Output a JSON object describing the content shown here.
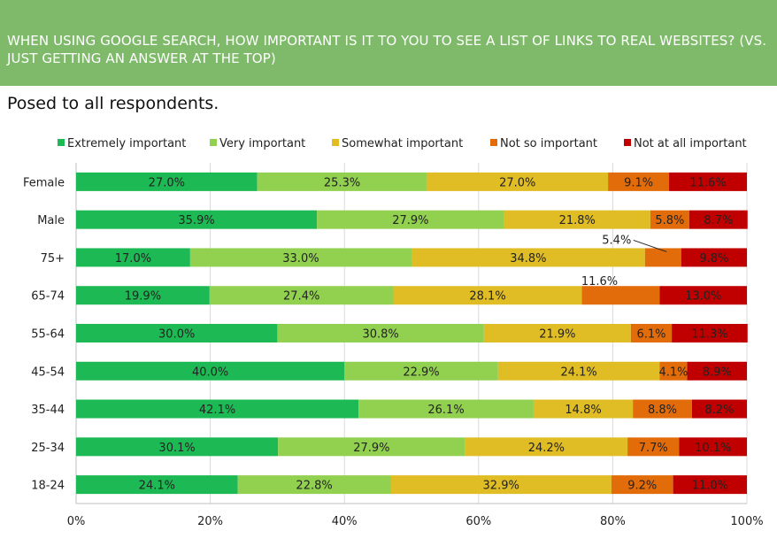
{
  "header": {
    "title": "When using Google search, how important is it to you to see a list of links to real websites? (vs. just getting an answer at the top)"
  },
  "subtitle": "Posed to all respondents.",
  "colors": {
    "header_bg": "#7fba6a",
    "extremely_important": "#1db954",
    "very_important": "#92d050",
    "somewhat_important": "#e0bd25",
    "not_so_important": "#e36c0a",
    "not_at_all_important": "#c00000"
  },
  "chart_data": {
    "type": "bar",
    "orientation": "horizontal",
    "stacked": "percent",
    "categories": [
      "Female",
      "Male",
      "75+",
      "65-74",
      "55-64",
      "45-54",
      "35-44",
      "25-34",
      "18-24"
    ],
    "series": [
      {
        "name": "Extremely important",
        "color": "#1db954",
        "values": [
          27.0,
          35.9,
          17.0,
          19.9,
          30.0,
          40.0,
          42.1,
          30.1,
          24.1
        ],
        "labels": [
          "27.0%",
          "35.9%",
          "17.0%",
          "19.9%",
          "30.0%",
          "40.0%",
          "42.1%",
          "30.1%",
          "24.1%"
        ]
      },
      {
        "name": "Very important",
        "color": "#92d050",
        "values": [
          25.3,
          27.9,
          33.0,
          27.4,
          30.8,
          22.9,
          26.1,
          27.9,
          22.8
        ],
        "labels": [
          "25.3%",
          "27.9%",
          "33.0%",
          "27.4%",
          "30.8%",
          "22.9%",
          "26.1%",
          "27.9%",
          "22.8%"
        ]
      },
      {
        "name": "Somewhat important",
        "color": "#e0bd25",
        "values": [
          27.0,
          21.8,
          34.8,
          28.1,
          21.9,
          24.1,
          14.8,
          24.2,
          32.9
        ],
        "labels": [
          "27.0%",
          "21.8%",
          "34.8%",
          "28.1%",
          "21.9%",
          "24.1%",
          "14.8%",
          "24.2%",
          "32.9%"
        ]
      },
      {
        "name": "Not so important",
        "color": "#e36c0a",
        "values": [
          9.1,
          5.8,
          5.4,
          11.6,
          6.1,
          4.1,
          8.8,
          7.7,
          9.2
        ],
        "labels": [
          "9.1%",
          "5.8%",
          "5.4%",
          "11.6%",
          "6.1%",
          "4.1%",
          "8.8%",
          "7.7%",
          "9.2%"
        ]
      },
      {
        "name": "Not at all important",
        "color": "#c00000",
        "values": [
          11.6,
          8.7,
          9.8,
          13.0,
          11.3,
          8.9,
          8.2,
          10.1,
          11.0
        ],
        "labels": [
          "11.6%",
          "8.7%",
          "9.8%",
          "13.0%",
          "11.3%",
          "8.9%",
          "8.2%",
          "10.1%",
          "11.0%"
        ]
      }
    ],
    "callouts": [
      {
        "category": "75+",
        "series": "Not so important",
        "label": "5.4%",
        "leader_line": true
      },
      {
        "category": "65-74",
        "series": "Not so important",
        "label": "11.6%",
        "leader_line": false
      }
    ],
    "xlim": [
      0,
      100
    ],
    "x_ticks": [
      "0%",
      "20%",
      "40%",
      "60%",
      "80%",
      "100%"
    ],
    "xlabel": "",
    "ylabel": "",
    "grid": true,
    "legend_position": "top"
  }
}
